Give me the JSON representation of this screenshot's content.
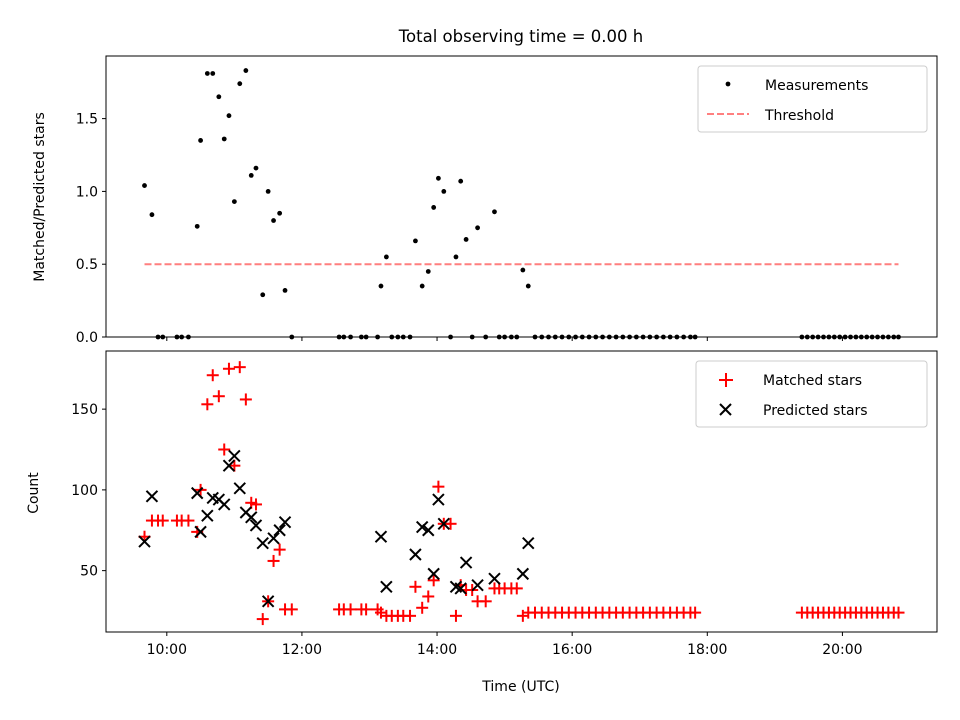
{
  "colors": {
    "matched": "#ff0000",
    "predicted": "#000000",
    "threshold": "#ff7f7f",
    "measurement": "#000000"
  },
  "chart_data": [
    {
      "type": "scatter",
      "title": "Total observing time = 0.00 h",
      "xlabel": "",
      "ylabel": "Matched/Predicted stars",
      "x_unit": "hours UTC",
      "xlim": [
        9.1,
        21.4
      ],
      "ylim": [
        0.0,
        1.93
      ],
      "xticks": [
        10,
        12,
        14,
        16,
        18,
        20
      ],
      "yticks": [
        0.0,
        0.5,
        1.0,
        1.5
      ],
      "ytick_labels": [
        "0.0",
        "0.5",
        "1.0",
        "1.5"
      ],
      "show_x_tick_labels": false,
      "legend": {
        "position": "top-right",
        "entries": [
          "Measurements",
          "Threshold"
        ]
      },
      "threshold": {
        "name": "Threshold",
        "y": 0.5,
        "x_range": [
          9.67,
          20.83
        ]
      },
      "series": [
        {
          "name": "Measurements",
          "marker": "dot",
          "points": [
            [
              9.67,
              1.04
            ],
            [
              9.78,
              0.84
            ],
            [
              9.87,
              0.0
            ],
            [
              9.94,
              0.0
            ],
            [
              10.15,
              0.0
            ],
            [
              10.22,
              0.0
            ],
            [
              10.32,
              0.0
            ],
            [
              10.45,
              0.76
            ],
            [
              10.5,
              1.35
            ],
            [
              10.6,
              1.81
            ],
            [
              10.68,
              1.81
            ],
            [
              10.77,
              1.65
            ],
            [
              10.85,
              1.36
            ],
            [
              10.92,
              1.52
            ],
            [
              11.0,
              0.93
            ],
            [
              11.08,
              1.74
            ],
            [
              11.17,
              1.83
            ],
            [
              11.25,
              1.11
            ],
            [
              11.32,
              1.16
            ],
            [
              11.42,
              0.29
            ],
            [
              11.5,
              1.0
            ],
            [
              11.58,
              0.8
            ],
            [
              11.67,
              0.85
            ],
            [
              11.75,
              0.32
            ],
            [
              11.85,
              0.0
            ],
            [
              12.55,
              0.0
            ],
            [
              12.62,
              0.0
            ],
            [
              12.72,
              0.0
            ],
            [
              12.88,
              0.0
            ],
            [
              12.95,
              0.0
            ],
            [
              13.12,
              0.0
            ],
            [
              13.17,
              0.35
            ],
            [
              13.25,
              0.55
            ],
            [
              13.33,
              0.0
            ],
            [
              13.42,
              0.0
            ],
            [
              13.5,
              0.0
            ],
            [
              13.6,
              0.0
            ],
            [
              13.68,
              0.66
            ],
            [
              13.78,
              0.35
            ],
            [
              13.87,
              0.45
            ],
            [
              13.95,
              0.89
            ],
            [
              14.02,
              1.09
            ],
            [
              14.1,
              1.0
            ],
            [
              14.2,
              0.0
            ],
            [
              14.28,
              0.55
            ],
            [
              14.35,
              1.07
            ],
            [
              14.43,
              0.67
            ],
            [
              14.52,
              0.0
            ],
            [
              14.6,
              0.75
            ],
            [
              14.72,
              0.0
            ],
            [
              14.85,
              0.86
            ],
            [
              14.92,
              0.0
            ],
            [
              15.0,
              0.0
            ],
            [
              15.1,
              0.0
            ],
            [
              15.18,
              0.0
            ],
            [
              15.27,
              0.46
            ],
            [
              15.35,
              0.35
            ],
            [
              15.45,
              0.0
            ],
            [
              15.55,
              0.0
            ],
            [
              15.65,
              0.0
            ],
            [
              15.75,
              0.0
            ],
            [
              15.85,
              0.0
            ],
            [
              15.95,
              0.0
            ],
            [
              16.05,
              0.0
            ],
            [
              16.15,
              0.0
            ],
            [
              16.25,
              0.0
            ],
            [
              16.35,
              0.0
            ],
            [
              16.45,
              0.0
            ],
            [
              16.55,
              0.0
            ],
            [
              16.65,
              0.0
            ],
            [
              16.75,
              0.0
            ],
            [
              16.85,
              0.0
            ],
            [
              16.95,
              0.0
            ],
            [
              17.05,
              0.0
            ],
            [
              17.15,
              0.0
            ],
            [
              17.25,
              0.0
            ],
            [
              17.35,
              0.0
            ],
            [
              17.45,
              0.0
            ],
            [
              17.55,
              0.0
            ],
            [
              17.65,
              0.0
            ],
            [
              17.75,
              0.0
            ],
            [
              17.82,
              0.0
            ],
            [
              19.4,
              0.0
            ],
            [
              19.48,
              0.0
            ],
            [
              19.56,
              0.0
            ],
            [
              19.64,
              0.0
            ],
            [
              19.72,
              0.0
            ],
            [
              19.8,
              0.0
            ],
            [
              19.88,
              0.0
            ],
            [
              19.96,
              0.0
            ],
            [
              20.04,
              0.0
            ],
            [
              20.12,
              0.0
            ],
            [
              20.2,
              0.0
            ],
            [
              20.28,
              0.0
            ],
            [
              20.36,
              0.0
            ],
            [
              20.44,
              0.0
            ],
            [
              20.52,
              0.0
            ],
            [
              20.6,
              0.0
            ],
            [
              20.68,
              0.0
            ],
            [
              20.76,
              0.0
            ],
            [
              20.83,
              0.0
            ]
          ]
        }
      ]
    },
    {
      "type": "scatter",
      "title": "",
      "xlabel": "Time (UTC)",
      "ylabel": "Count",
      "x_unit": "hours UTC",
      "xlim": [
        9.1,
        21.4
      ],
      "ylim": [
        12.0,
        186.0
      ],
      "xticks": [
        10,
        12,
        14,
        16,
        18,
        20
      ],
      "xtick_labels": [
        "10:00",
        "12:00",
        "14:00",
        "16:00",
        "18:00",
        "20:00"
      ],
      "yticks": [
        50,
        100,
        150
      ],
      "ytick_labels": [
        "50",
        "100",
        "150"
      ],
      "legend": {
        "position": "top-right",
        "entries": [
          "Matched stars",
          "Predicted stars"
        ]
      },
      "series": [
        {
          "name": "Matched stars",
          "marker": "plus",
          "points": [
            [
              9.67,
              71
            ],
            [
              9.78,
              81
            ],
            [
              9.87,
              81
            ],
            [
              9.94,
              81
            ],
            [
              10.15,
              81
            ],
            [
              10.22,
              81
            ],
            [
              10.32,
              81
            ],
            [
              10.45,
              74
            ],
            [
              10.5,
              100
            ],
            [
              10.6,
              153
            ],
            [
              10.68,
              171
            ],
            [
              10.77,
              158
            ],
            [
              10.85,
              125
            ],
            [
              10.92,
              175
            ],
            [
              11.0,
              115
            ],
            [
              11.08,
              176
            ],
            [
              11.17,
              156
            ],
            [
              11.25,
              92
            ],
            [
              11.32,
              91
            ],
            [
              11.42,
              20
            ],
            [
              11.5,
              31
            ],
            [
              11.58,
              56
            ],
            [
              11.67,
              63
            ],
            [
              11.75,
              26
            ],
            [
              11.85,
              26
            ],
            [
              12.55,
              26
            ],
            [
              12.62,
              26
            ],
            [
              12.72,
              26
            ],
            [
              12.88,
              26
            ],
            [
              12.95,
              26
            ],
            [
              13.12,
              26
            ],
            [
              13.17,
              24
            ],
            [
              13.25,
              22
            ],
            [
              13.33,
              22
            ],
            [
              13.42,
              22
            ],
            [
              13.5,
              22
            ],
            [
              13.6,
              22
            ],
            [
              13.68,
              40
            ],
            [
              13.78,
              27
            ],
            [
              13.87,
              34
            ],
            [
              13.95,
              44
            ],
            [
              14.02,
              102
            ],
            [
              14.1,
              79
            ],
            [
              14.2,
              79
            ],
            [
              14.28,
              22
            ],
            [
              14.35,
              41
            ],
            [
              14.43,
              38
            ],
            [
              14.52,
              38
            ],
            [
              14.6,
              31
            ],
            [
              14.72,
              31
            ],
            [
              14.85,
              39
            ],
            [
              14.92,
              39
            ],
            [
              15.0,
              39
            ],
            [
              15.1,
              39
            ],
            [
              15.18,
              39
            ],
            [
              15.27,
              22
            ],
            [
              15.35,
              24
            ],
            [
              15.45,
              24
            ],
            [
              15.55,
              24
            ],
            [
              15.65,
              24
            ],
            [
              15.75,
              24
            ],
            [
              15.85,
              24
            ],
            [
              15.95,
              24
            ],
            [
              16.05,
              24
            ],
            [
              16.15,
              24
            ],
            [
              16.25,
              24
            ],
            [
              16.35,
              24
            ],
            [
              16.45,
              24
            ],
            [
              16.55,
              24
            ],
            [
              16.65,
              24
            ],
            [
              16.75,
              24
            ],
            [
              16.85,
              24
            ],
            [
              16.95,
              24
            ],
            [
              17.05,
              24
            ],
            [
              17.15,
              24
            ],
            [
              17.25,
              24
            ],
            [
              17.35,
              24
            ],
            [
              17.45,
              24
            ],
            [
              17.55,
              24
            ],
            [
              17.65,
              24
            ],
            [
              17.75,
              24
            ],
            [
              17.82,
              24
            ],
            [
              19.4,
              24
            ],
            [
              19.48,
              24
            ],
            [
              19.56,
              24
            ],
            [
              19.64,
              24
            ],
            [
              19.72,
              24
            ],
            [
              19.8,
              24
            ],
            [
              19.88,
              24
            ],
            [
              19.96,
              24
            ],
            [
              20.04,
              24
            ],
            [
              20.12,
              24
            ],
            [
              20.2,
              24
            ],
            [
              20.28,
              24
            ],
            [
              20.36,
              24
            ],
            [
              20.44,
              24
            ],
            [
              20.52,
              24
            ],
            [
              20.6,
              24
            ],
            [
              20.68,
              24
            ],
            [
              20.76,
              24
            ],
            [
              20.83,
              24
            ]
          ]
        },
        {
          "name": "Predicted stars",
          "marker": "x",
          "points": [
            [
              9.67,
              68
            ],
            [
              9.78,
              96
            ],
            [
              10.45,
              98
            ],
            [
              10.5,
              74
            ],
            [
              10.6,
              84
            ],
            [
              10.68,
              95
            ],
            [
              10.77,
              94
            ],
            [
              10.85,
              91
            ],
            [
              10.92,
              115
            ],
            [
              11.0,
              121
            ],
            [
              11.08,
              101
            ],
            [
              11.17,
              86
            ],
            [
              11.25,
              83
            ],
            [
              11.32,
              78
            ],
            [
              11.42,
              67
            ],
            [
              11.5,
              31
            ],
            [
              11.58,
              70
            ],
            [
              11.67,
              75
            ],
            [
              11.75,
              80
            ],
            [
              13.17,
              71
            ],
            [
              13.25,
              40
            ],
            [
              13.68,
              60
            ],
            [
              13.78,
              77
            ],
            [
              13.87,
              75
            ],
            [
              13.95,
              48
            ],
            [
              14.02,
              94
            ],
            [
              14.1,
              79
            ],
            [
              14.28,
              40
            ],
            [
              14.35,
              39
            ],
            [
              14.43,
              55
            ],
            [
              14.6,
              41
            ],
            [
              14.85,
              45
            ],
            [
              15.27,
              48
            ],
            [
              15.35,
              67
            ]
          ]
        }
      ]
    }
  ]
}
